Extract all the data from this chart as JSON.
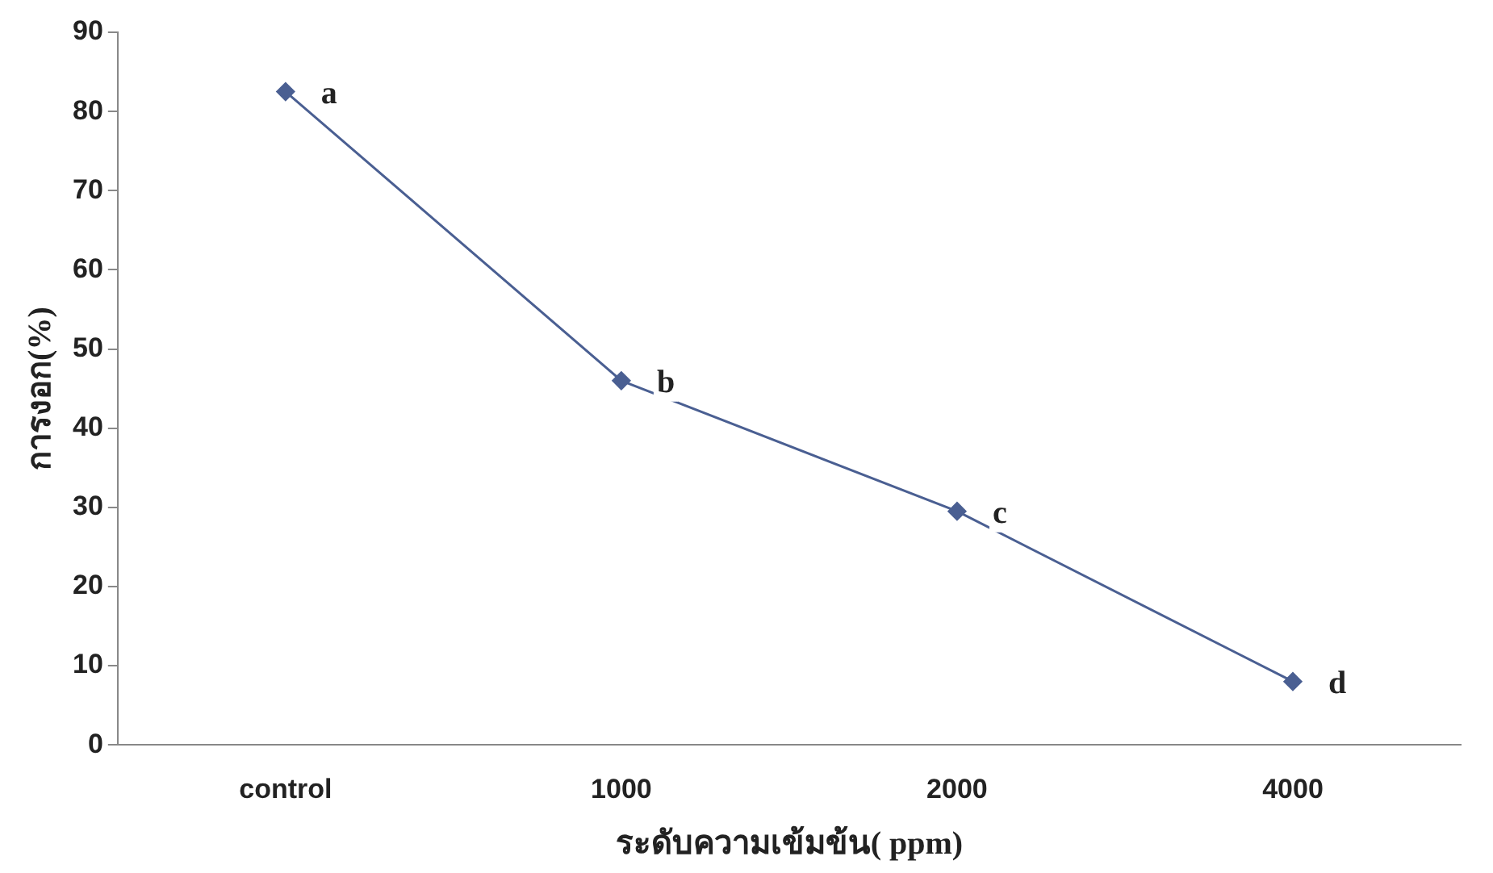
{
  "chart_data": {
    "type": "line",
    "xlabel": "ระดับความเข้มข้น( ppm)",
    "ylabel": "การงอก(%)",
    "categories": [
      "control",
      "1000",
      "2000",
      "4000"
    ],
    "series": [
      {
        "color": "#4a5f92",
        "values": [
          82.5,
          46,
          29.5,
          8
        ]
      }
    ],
    "ylim": [
      0,
      90
    ],
    "yticks": [
      0,
      10,
      20,
      30,
      40,
      50,
      60,
      70,
      80,
      90
    ],
    "grid": false,
    "legend": false,
    "marker": "diamond",
    "line_style": "solid",
    "annotations": [
      {
        "text": "a",
        "x": "control",
        "y": 82.5
      },
      {
        "text": "b",
        "x": "1000",
        "y": 46
      },
      {
        "text": "c",
        "x": "2000",
        "y": 29.5
      },
      {
        "text": "d",
        "x": "4000",
        "y": 8
      }
    ]
  }
}
